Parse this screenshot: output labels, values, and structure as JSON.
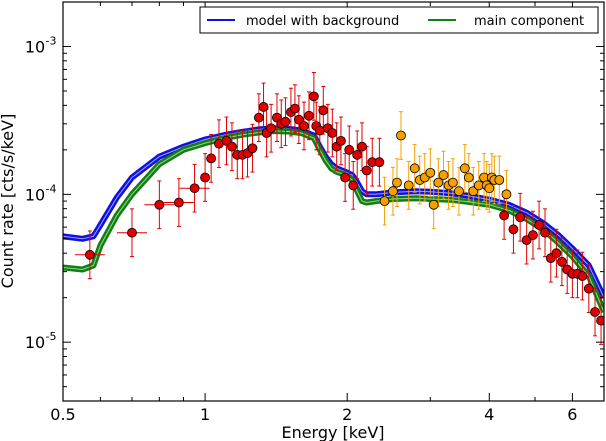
{
  "chart_data": {
    "type": "scatter",
    "title": "",
    "xlabel": "Energy [keV]",
    "ylabel": "Count rate [cts/s/keV]",
    "xscale": "log",
    "yscale": "log",
    "xlim": [
      0.5,
      7.0
    ],
    "ylim": [
      4e-06,
      0.002
    ],
    "grid": false,
    "legend_position": "top-right",
    "x_ticks": [
      {
        "value": 0.5,
        "label": "0.5"
      },
      {
        "value": 1,
        "label": "1"
      },
      {
        "value": 2,
        "label": "2"
      },
      {
        "value": 4,
        "label": "4"
      },
      {
        "value": 6,
        "label": "6"
      }
    ],
    "y_ticks": [
      {
        "value": 1e-05,
        "base": "10",
        "exp": "-5"
      },
      {
        "value": 0.0001,
        "base": "10",
        "exp": "-4"
      },
      {
        "value": 0.001,
        "base": "10",
        "exp": "-3"
      }
    ],
    "lines": [
      {
        "name": "model with background",
        "color": "#1010e0",
        "x": [
          0.5,
          0.55,
          0.58,
          0.6,
          0.65,
          0.7,
          0.8,
          0.9,
          1.0,
          1.1,
          1.2,
          1.3,
          1.4,
          1.5,
          1.6,
          1.7,
          1.75,
          1.8,
          1.85,
          1.9,
          1.95,
          2.0,
          2.05,
          2.1,
          2.15,
          2.2,
          2.3,
          2.5,
          2.8,
          3.0,
          3.3,
          3.6,
          4.0,
          4.4,
          4.8,
          5.2,
          5.6,
          6.0,
          6.5,
          7.0
        ],
        "y": [
          5.2e-05,
          5e-05,
          5.2e-05,
          6.2e-05,
          9.5e-05,
          0.00013,
          0.00018,
          0.00021,
          0.000235,
          0.000252,
          0.000265,
          0.000275,
          0.00028,
          0.000278,
          0.00027,
          0.00025,
          0.00021,
          0.00018,
          0.00016,
          0.00015,
          0.000145,
          0.00014,
          0.000135,
          0.00012,
          0.000105,
          0.0001,
          0.0001,
          0.000103,
          0.000105,
          0.000104,
          0.000102,
          9.8e-05,
          9.2e-05,
          8.5e-05,
          7.5e-05,
          6.4e-05,
          5.3e-05,
          4.3e-05,
          3.3e-05,
          2e-05
        ]
      },
      {
        "name": "main component",
        "color": "#108010",
        "x": [
          0.5,
          0.55,
          0.58,
          0.6,
          0.65,
          0.7,
          0.8,
          0.9,
          1.0,
          1.1,
          1.2,
          1.3,
          1.4,
          1.5,
          1.6,
          1.7,
          1.75,
          1.8,
          1.85,
          1.9,
          1.95,
          2.0,
          2.05,
          2.1,
          2.15,
          2.2,
          2.3,
          2.5,
          2.8,
          3.0,
          3.3,
          3.6,
          4.0,
          4.4,
          4.8,
          5.2,
          5.6,
          6.0,
          6.5,
          7.0
        ],
        "y": [
          3.2e-05,
          3.1e-05,
          3.3e-05,
          4.5e-05,
          7.2e-05,
          0.0001,
          0.00016,
          0.0002,
          0.000222,
          0.00024,
          0.000253,
          0.000262,
          0.000268,
          0.000266,
          0.00026,
          0.00024,
          0.0002,
          0.00017,
          0.00015,
          0.000142,
          0.000138,
          0.000132,
          0.000125,
          0.000105,
          9e-05,
          8.8e-05,
          9e-05,
          9.3e-05,
          9.4e-05,
          9.3e-05,
          9.2e-05,
          8.9e-05,
          8.5e-05,
          7.8e-05,
          6.8e-05,
          5.8e-05,
          4.7e-05,
          3.8e-05,
          2.8e-05,
          1.6e-05
        ]
      }
    ],
    "points": [
      {
        "series": "red",
        "color": "#e00000",
        "x": [
          0.57,
          0.7,
          0.8,
          0.88,
          0.95,
          1.0,
          1.03,
          1.07,
          1.11,
          1.14,
          1.17,
          1.2,
          1.23,
          1.26,
          1.3,
          1.33,
          1.35,
          1.38,
          1.42,
          1.45,
          1.48,
          1.52,
          1.55,
          1.58,
          1.62,
          1.66,
          1.7,
          1.72,
          1.75,
          1.78,
          1.82,
          1.86,
          1.9,
          1.94,
          1.98,
          2.02,
          2.06,
          2.1,
          2.15,
          2.2,
          2.26,
          2.34,
          4.3,
          4.5,
          4.65,
          4.8,
          4.95,
          5.1,
          5.25,
          5.4,
          5.55,
          5.7,
          5.85,
          6.0,
          6.15,
          6.3,
          6.5,
          6.7,
          6.9
        ],
        "y": [
          3.9e-05,
          5.5e-05,
          8.5e-05,
          8.8e-05,
          0.00011,
          0.00013,
          0.000175,
          0.00022,
          0.00023,
          0.00021,
          0.000185,
          0.000185,
          0.00019,
          0.000205,
          0.00033,
          0.00039,
          0.00026,
          0.00028,
          0.00033,
          0.0003,
          0.00031,
          0.00036,
          0.00038,
          0.00032,
          0.00029,
          0.00034,
          0.00046,
          0.00029,
          0.00027,
          0.00037,
          0.00028,
          0.00026,
          0.00021,
          0.00023,
          0.00013,
          0.0002,
          0.000115,
          0.000185,
          0.00021,
          0.000145,
          0.000165,
          0.000165,
          7.2e-05,
          5.8e-05,
          7e-05,
          4.9e-05,
          5.3e-05,
          6.2e-05,
          5.5e-05,
          3.7e-05,
          4e-05,
          3.5e-05,
          3.1e-05,
          2.9e-05,
          2.9e-05,
          2.8e-05,
          2.3e-05,
          1.6e-05,
          1.4e-05
        ]
      },
      {
        "series": "orange",
        "color": "#f5a000",
        "x": [
          2.4,
          2.5,
          2.55,
          2.6,
          2.7,
          2.78,
          2.85,
          2.92,
          3.0,
          3.05,
          3.12,
          3.2,
          3.28,
          3.35,
          3.45,
          3.55,
          3.62,
          3.7,
          3.8,
          3.9,
          3.95,
          4.0,
          4.05,
          4.1,
          4.2,
          4.35
        ],
        "y": [
          9e-05,
          0.000105,
          0.00012,
          0.00025,
          0.000115,
          0.00015,
          0.000125,
          0.00013,
          0.00014,
          8.5e-05,
          0.00012,
          0.000135,
          0.000115,
          0.00012,
          0.000105,
          0.00015,
          0.00013,
          0.000105,
          0.000115,
          0.00013,
          0.000115,
          0.00011,
          0.00013,
          0.000125,
          0.000125,
          0.0001
        ]
      }
    ]
  }
}
